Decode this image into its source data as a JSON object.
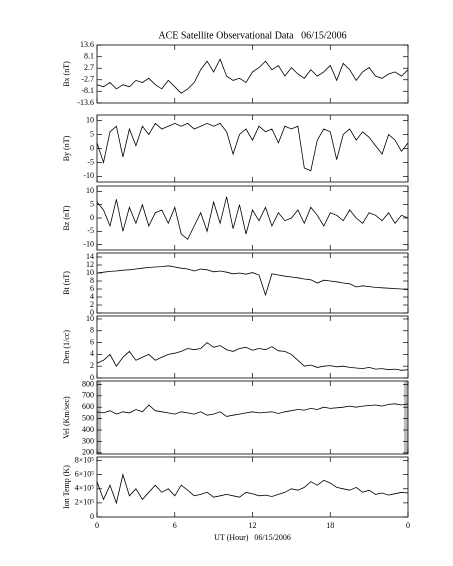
{
  "chart_data": [
    {
      "type": "line",
      "title": "ACE Satellite Observational Data   06/15/2006",
      "ylabel": "Bx (nT)",
      "color": "#000000",
      "x": [
        0,
        0.5,
        1,
        1.5,
        2,
        2.5,
        3,
        3.5,
        4,
        4.5,
        5,
        5.5,
        6,
        6.5,
        7,
        7.5,
        8,
        8.5,
        9,
        9.5,
        10,
        10.5,
        11,
        11.5,
        12,
        12.5,
        13,
        13.5,
        14,
        14.5,
        15,
        15.5,
        16,
        16.5,
        17,
        17.5,
        18,
        18.5,
        19,
        19.5,
        20,
        20.5,
        21,
        21.5,
        22,
        22.5,
        23,
        23.5,
        24
      ],
      "values": [
        -5,
        -6,
        -4,
        -7,
        -5,
        -6,
        -3,
        -4,
        -2,
        -5,
        -7,
        -3,
        -6,
        -9,
        -7,
        -4,
        2,
        6,
        1,
        7,
        -1,
        -3,
        -2,
        -4,
        1,
        3,
        6,
        2,
        4,
        -1,
        3,
        0,
        -2,
        2,
        -1,
        1,
        4,
        -3,
        5,
        2,
        -3,
        1,
        3,
        -1,
        -2,
        0,
        1,
        -1,
        2
      ],
      "xlim": [
        0,
        24
      ],
      "xticks": [
        0,
        6,
        12,
        18,
        {
          "value": 24,
          "label": "0"
        }
      ],
      "ylim": [
        -13.6,
        13.6
      ],
      "yticks": [
        -13.6,
        -8.1,
        -2.7,
        2.7,
        8.1,
        13.6
      ]
    },
    {
      "type": "line",
      "ylabel": "By (nT)",
      "color": "#000000",
      "x": [
        0,
        0.5,
        1,
        1.5,
        2,
        2.5,
        3,
        3.5,
        4,
        4.5,
        5,
        5.5,
        6,
        6.5,
        7,
        7.5,
        8,
        8.5,
        9,
        9.5,
        10,
        10.5,
        11,
        11.5,
        12,
        12.5,
        13,
        13.5,
        14,
        14.5,
        15,
        15.5,
        16,
        16.5,
        17,
        17.5,
        18,
        18.5,
        19,
        19.5,
        20,
        20.5,
        21,
        21.5,
        22,
        22.5,
        23,
        23.5,
        24
      ],
      "values": [
        2,
        -5,
        6,
        8,
        -3,
        7,
        1,
        8,
        5,
        9,
        7,
        8,
        9,
        8,
        9,
        7,
        8,
        9,
        8,
        9,
        6,
        -2,
        5,
        7,
        3,
        8,
        6,
        7,
        2,
        8,
        7,
        8,
        -7,
        -8,
        3,
        7,
        6,
        -4,
        5,
        7,
        3,
        6,
        4,
        1,
        -2,
        5,
        3,
        -1,
        2
      ],
      "xlim": [
        0,
        24
      ],
      "xticks": [
        0,
        6,
        12,
        18,
        {
          "value": 24,
          "label": "0"
        }
      ],
      "ylim": [
        -12,
        12
      ],
      "yticks": [
        -10,
        -5,
        0,
        5,
        10
      ]
    },
    {
      "type": "line",
      "ylabel": "Bz (nT)",
      "color": "#000000",
      "x": [
        0,
        0.5,
        1,
        1.5,
        2,
        2.5,
        3,
        3.5,
        4,
        4.5,
        5,
        5.5,
        6,
        6.5,
        7,
        7.5,
        8,
        8.5,
        9,
        9.5,
        10,
        10.5,
        11,
        11.5,
        12,
        12.5,
        13,
        13.5,
        14,
        14.5,
        15,
        15.5,
        16,
        16.5,
        17,
        17.5,
        18,
        18.5,
        19,
        19.5,
        20,
        20.5,
        21,
        21.5,
        22,
        22.5,
        23,
        23.5,
        24
      ],
      "values": [
        6,
        3,
        -3,
        7,
        -5,
        4,
        -2,
        5,
        -3,
        2,
        3,
        -2,
        4,
        -6,
        -8,
        -3,
        2,
        -5,
        6,
        -2,
        8,
        -4,
        5,
        -6,
        3,
        -1,
        4,
        -3,
        2,
        -1,
        0,
        3,
        -2,
        4,
        1,
        -3,
        2,
        1,
        -1,
        3,
        0,
        -2,
        2,
        1,
        -1,
        2,
        -2,
        1,
        0
      ],
      "xlim": [
        0,
        24
      ],
      "xticks": [
        0,
        6,
        12,
        18,
        {
          "value": 24,
          "label": "0"
        }
      ],
      "ylim": [
        -12,
        12
      ],
      "yticks": [
        -10,
        -5,
        0,
        5,
        10
      ]
    },
    {
      "type": "line",
      "ylabel": "Bt (nT)",
      "color": "#000000",
      "x": [
        0,
        0.5,
        1,
        1.5,
        2,
        2.5,
        3,
        3.5,
        4,
        4.5,
        5,
        5.5,
        6,
        6.5,
        7,
        7.5,
        8,
        8.5,
        9,
        9.5,
        10,
        10.5,
        11,
        11.5,
        12,
        12.5,
        13,
        13.5,
        14,
        14.5,
        15,
        15.5,
        16,
        16.5,
        17,
        17.5,
        18,
        18.5,
        19,
        19.5,
        20,
        20.5,
        21,
        21.5,
        22,
        22.5,
        23,
        23.5,
        24
      ],
      "values": [
        10,
        10.2,
        10.4,
        10.5,
        10.7,
        10.8,
        11,
        11.2,
        11.4,
        11.5,
        11.6,
        11.8,
        11.5,
        11.2,
        11,
        10.5,
        11,
        10.8,
        10.3,
        10.5,
        10.2,
        9.8,
        10,
        9.7,
        10.1,
        9.5,
        4.5,
        9.8,
        9.5,
        9.2,
        9,
        8.8,
        8.5,
        8.3,
        7.5,
        8.2,
        8,
        7.8,
        7.5,
        7.3,
        6.5,
        6.8,
        6.6,
        6.4,
        6.3,
        6.2,
        6.1,
        6,
        5.8
      ],
      "xlim": [
        0,
        24
      ],
      "xticks": [
        0,
        6,
        12,
        18,
        {
          "value": 24,
          "label": "0"
        }
      ],
      "ylim": [
        0,
        15
      ],
      "yticks": [
        0,
        2,
        4,
        6,
        8,
        10,
        12,
        14
      ]
    },
    {
      "type": "line",
      "ylabel": "Den (1/cc)",
      "color": "#000000",
      "x": [
        0,
        0.5,
        1,
        1.5,
        2,
        2.5,
        3,
        3.5,
        4,
        4.5,
        5,
        5.5,
        6,
        6.5,
        7,
        7.5,
        8,
        8.5,
        9,
        9.5,
        10,
        10.5,
        11,
        11.5,
        12,
        12.5,
        13,
        13.5,
        14,
        14.5,
        15,
        15.5,
        16,
        16.5,
        17,
        17.5,
        18,
        18.5,
        19,
        19.5,
        20,
        20.5,
        21,
        21.5,
        22,
        22.5,
        23,
        23.5,
        24
      ],
      "values": [
        2.5,
        3,
        4,
        2,
        3.5,
        4.5,
        3,
        3.5,
        4,
        3,
        3.5,
        4,
        4.2,
        4.5,
        5,
        4.8,
        5,
        6,
        5.2,
        5.5,
        4.8,
        4.5,
        5,
        5.2,
        4.7,
        5,
        4.8,
        5.3,
        4.6,
        4.5,
        4,
        3,
        2,
        2.2,
        1.8,
        2,
        2.1,
        1.9,
        2,
        1.8,
        1.7,
        1.6,
        1.8,
        1.5,
        1.6,
        1.4,
        1.5,
        1.3,
        1.4
      ],
      "xlim": [
        0,
        24
      ],
      "xticks": [
        0,
        6,
        12,
        18,
        {
          "value": 24,
          "label": "0"
        }
      ],
      "ylim": [
        0,
        10.5
      ],
      "yticks": [
        0,
        2,
        4,
        6,
        8,
        10
      ]
    },
    {
      "type": "line",
      "ylabel": "Vel (Km/sec)",
      "color": "#000000",
      "x": [
        0,
        0.5,
        1,
        1.5,
        2,
        2.5,
        3,
        3.5,
        4,
        4.5,
        5,
        5.5,
        6,
        6.5,
        7,
        7.5,
        8,
        8.5,
        9,
        9.5,
        10,
        10.5,
        11,
        11.5,
        12,
        12.5,
        13,
        13.5,
        14,
        14.5,
        15,
        15.5,
        16,
        16.5,
        17,
        17.5,
        18,
        18.5,
        19,
        19.5,
        20,
        20.5,
        21,
        21.5,
        22,
        22.5,
        23,
        23.5,
        24
      ],
      "values": [
        560,
        550,
        570,
        540,
        560,
        550,
        580,
        560,
        620,
        570,
        560,
        550,
        540,
        560,
        550,
        540,
        560,
        530,
        540,
        560,
        520,
        530,
        540,
        550,
        560,
        550,
        555,
        560,
        545,
        560,
        570,
        580,
        575,
        590,
        580,
        600,
        590,
        595,
        600,
        610,
        600,
        610,
        615,
        620,
        610,
        625,
        630,
        620,
        630
      ],
      "xlim": [
        0,
        24
      ],
      "xticks": [
        0,
        6,
        12,
        18,
        {
          "value": 24,
          "label": "0"
        }
      ],
      "ylim": [
        190,
        830
      ],
      "yticks": [
        200,
        300,
        400,
        500,
        600,
        700,
        800
      ]
    },
    {
      "type": "line",
      "ylabel": "Ion Temp (K)",
      "xlabel": "UT (Hour)   06/15/2006",
      "color": "#000000",
      "x": [
        0,
        0.5,
        1,
        1.5,
        2,
        2.5,
        3,
        3.5,
        4,
        4.5,
        5,
        5.5,
        6,
        6.5,
        7,
        7.5,
        8,
        8.5,
        9,
        9.5,
        10,
        10.5,
        11,
        11.5,
        12,
        12.5,
        13,
        13.5,
        14,
        14.5,
        15,
        15.5,
        16,
        16.5,
        17,
        17.5,
        18,
        18.5,
        19,
        19.5,
        20,
        20.5,
        21,
        21.5,
        22,
        22.5,
        23,
        23.5,
        24
      ],
      "values": [
        500000,
        250000,
        450000,
        200000,
        600000,
        300000,
        400000,
        250000,
        350000,
        450000,
        350000,
        400000,
        300000,
        450000,
        380000,
        300000,
        320000,
        350000,
        280000,
        300000,
        320000,
        300000,
        280000,
        350000,
        330000,
        300000,
        310000,
        290000,
        320000,
        350000,
        400000,
        380000,
        420000,
        500000,
        450000,
        520000,
        480000,
        420000,
        400000,
        380000,
        420000,
        350000,
        380000,
        320000,
        340000,
        310000,
        330000,
        350000,
        340000
      ],
      "xlim": [
        0,
        24
      ],
      "xticks": [
        0,
        6,
        12,
        18,
        {
          "value": 24,
          "label": "0"
        }
      ],
      "ylim": [
        0,
        850000
      ],
      "yticks": [
        {
          "value": 0,
          "label": "0"
        },
        {
          "value": 200000,
          "label": "2×10⁵"
        },
        {
          "value": 400000,
          "label": "4×10⁵"
        },
        {
          "value": 600000,
          "label": "6×10⁵"
        },
        {
          "value": 800000,
          "label": "8×10⁵"
        }
      ]
    }
  ]
}
